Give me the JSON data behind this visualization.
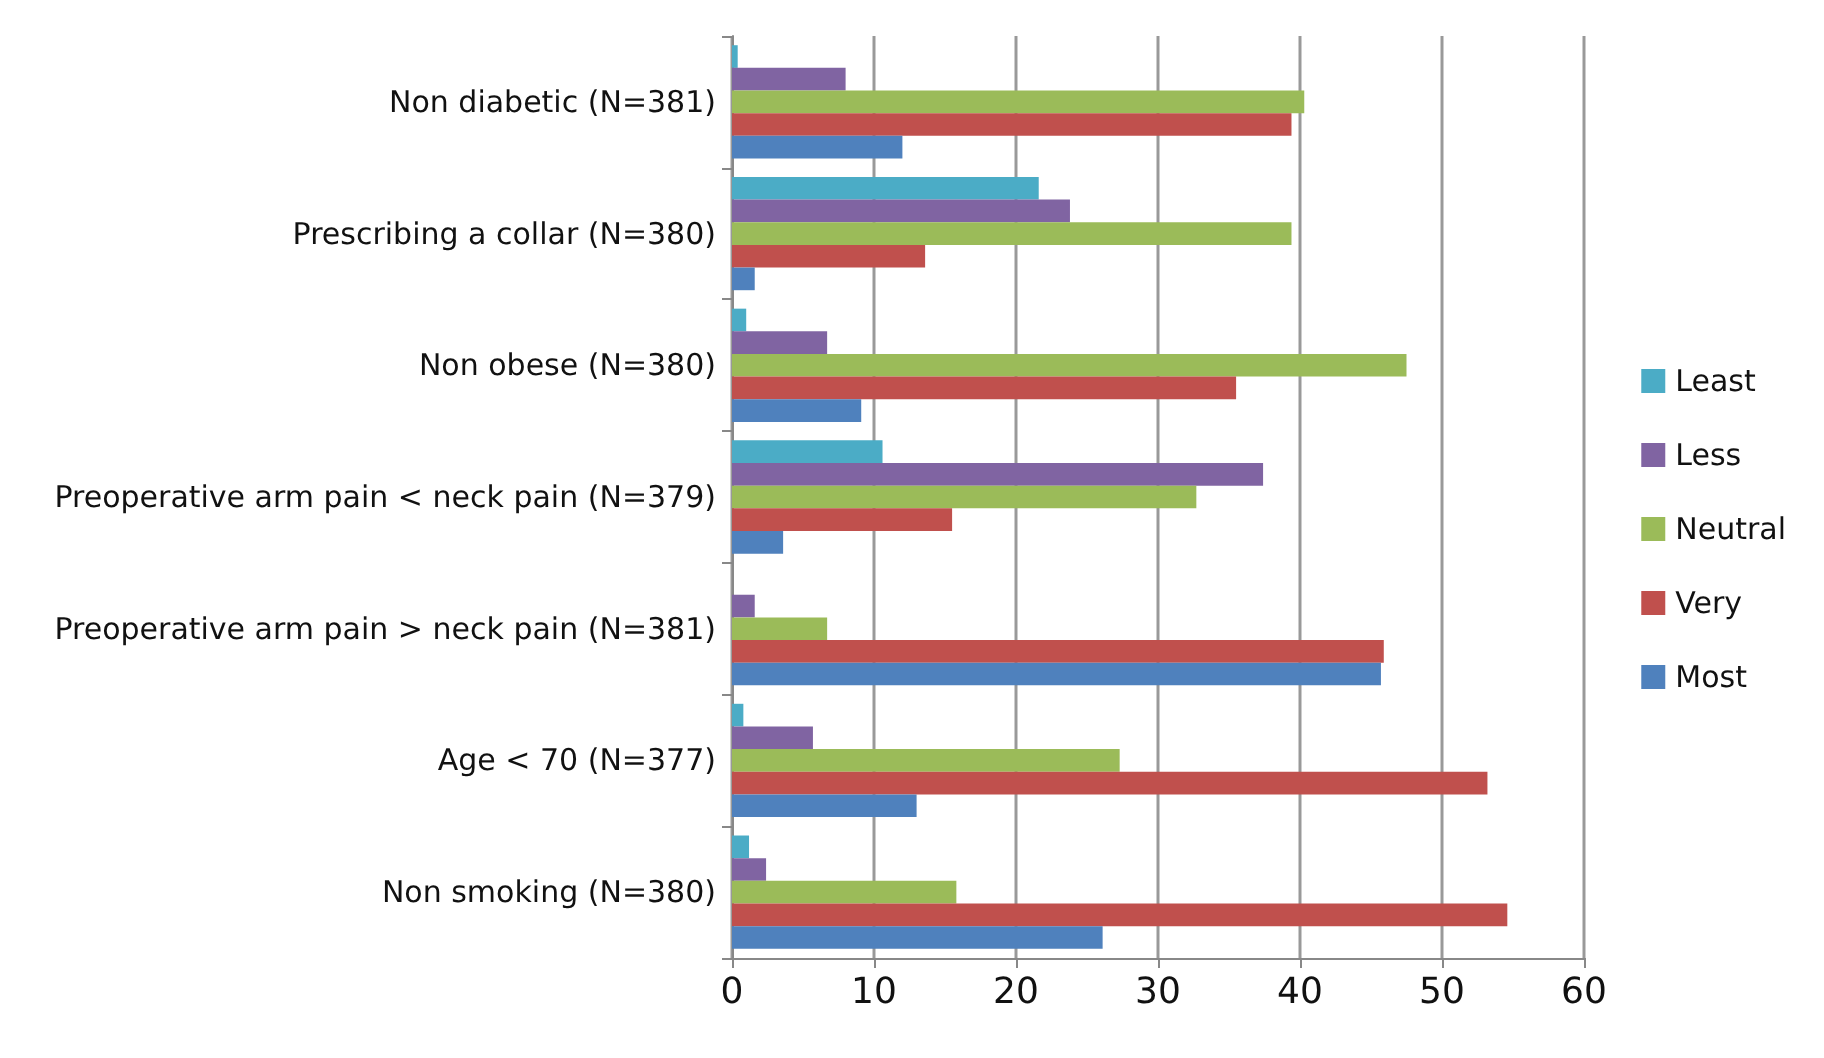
{
  "chart_data": {
    "type": "bar",
    "orientation": "horizontal",
    "categories": [
      "Non diabetic (N=381)",
      "Prescribing a collar (N=380)",
      "Non obese (N=380)",
      "Preoperative arm pain < neck pain (N=379)",
      "Preoperative arm pain > neck pain (N=381)",
      "Age < 70 (N=377)",
      "Non smoking (N=380)"
    ],
    "series": [
      {
        "name": "Least",
        "color": "#4bacc6",
        "values": [
          0.4,
          21.6,
          1,
          10.6,
          0,
          0.8,
          1.2
        ]
      },
      {
        "name": "Less",
        "color": "#8064a2",
        "values": [
          8,
          23.8,
          6.7,
          37.4,
          1.6,
          5.7,
          2.4
        ]
      },
      {
        "name": "Neutral",
        "color": "#9bbb59",
        "values": [
          40.3,
          39.4,
          47.5,
          32.7,
          6.7,
          27.3,
          15.8
        ]
      },
      {
        "name": "Very",
        "color": "#c0504d",
        "values": [
          39.4,
          13.6,
          35.5,
          15.5,
          45.9,
          53.2,
          54.6
        ]
      },
      {
        "name": "Most",
        "color": "#4f81bd",
        "values": [
          12,
          1.6,
          9.1,
          3.6,
          45.7,
          13,
          26.1
        ]
      }
    ],
    "xlim": [
      0,
      60
    ],
    "xticks": [
      0,
      10,
      20,
      30,
      40,
      50,
      60
    ],
    "grid": "x",
    "legend": "right"
  }
}
